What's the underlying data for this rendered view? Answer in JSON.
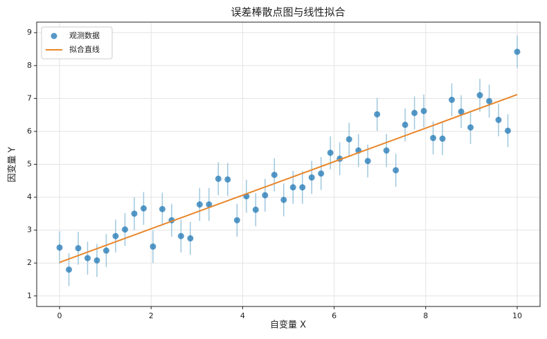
{
  "chart_data": {
    "type": "scatter",
    "title": "误差棒散点图与线性拟合",
    "xlabel": "自变量 X",
    "ylabel": "因变量 Y",
    "xlim": [
      -0.5,
      10.5
    ],
    "ylim": [
      0.68,
      9.32
    ],
    "xticks": [
      0,
      2,
      4,
      6,
      8,
      10
    ],
    "yticks": [
      1,
      2,
      3,
      4,
      5,
      6,
      7,
      8,
      9
    ],
    "grid": true,
    "legend": "upper left",
    "series": [
      {
        "name": "观测数据",
        "type": "scatter",
        "color": "#1f77b4",
        "errorColor": "#9ec7df",
        "x": [
          0,
          0.204,
          0.408,
          0.612,
          0.816,
          1.02,
          1.224,
          1.429,
          1.633,
          1.837,
          2.041,
          2.245,
          2.449,
          2.653,
          2.857,
          3.061,
          3.265,
          3.469,
          3.673,
          3.878,
          4.082,
          4.286,
          4.49,
          4.694,
          4.898,
          5.102,
          5.306,
          5.51,
          5.714,
          5.918,
          6.122,
          6.327,
          6.531,
          6.735,
          6.939,
          7.143,
          7.347,
          7.551,
          7.755,
          7.959,
          8.163,
          8.367,
          8.571,
          8.776,
          8.98,
          9.184,
          9.388,
          9.592,
          9.796,
          10
        ],
        "values": [
          2.47,
          1.8,
          2.45,
          2.15,
          2.08,
          2.38,
          2.82,
          3.02,
          3.5,
          3.66,
          2.5,
          3.64,
          3.3,
          2.82,
          2.75,
          3.78,
          3.78,
          4.56,
          4.54,
          3.3,
          4.03,
          3.62,
          4.06,
          4.68,
          3.92,
          4.3,
          4.3,
          4.6,
          4.72,
          5.35,
          5.17,
          5.76,
          5.42,
          5.1,
          6.52,
          5.42,
          4.82,
          6.2,
          6.56,
          6.62,
          5.8,
          5.78,
          6.96,
          6.6,
          6.12,
          7.1,
          6.92,
          6.35,
          6.02,
          8.42
        ],
        "errors": [
          0.5,
          0.5,
          0.5,
          0.5,
          0.5,
          0.5,
          0.5,
          0.5,
          0.5,
          0.5,
          0.5,
          0.5,
          0.5,
          0.5,
          0.5,
          0.5,
          0.5,
          0.5,
          0.5,
          0.5,
          0.5,
          0.5,
          0.5,
          0.5,
          0.5,
          0.5,
          0.5,
          0.5,
          0.5,
          0.5,
          0.5,
          0.5,
          0.5,
          0.5,
          0.5,
          0.5,
          0.5,
          0.5,
          0.5,
          0.5,
          0.5,
          0.5,
          0.5,
          0.5,
          0.5,
          0.5,
          0.5,
          0.5,
          0.5,
          0.5
        ]
      },
      {
        "name": "拟合直线",
        "type": "line",
        "color": "#e8862a",
        "x": [
          0,
          10
        ],
        "values": [
          2.02,
          7.12
        ]
      }
    ]
  }
}
